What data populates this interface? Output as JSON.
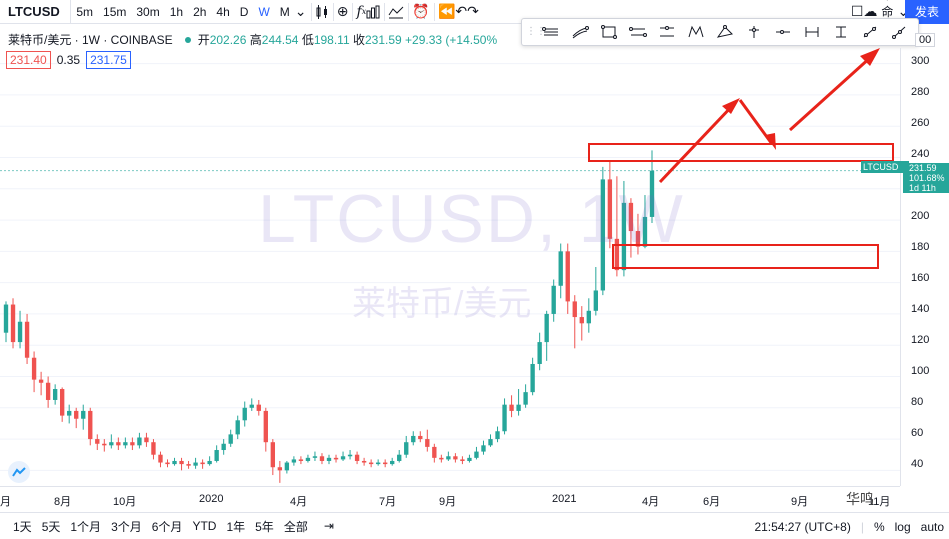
{
  "toolbar": {
    "symbol": "LTCUSD",
    "timeframes": [
      "5m",
      "15m",
      "30m",
      "1h",
      "2h",
      "4h",
      "D",
      "W",
      "M"
    ],
    "active_timeframe": "W",
    "unnamed_label": "未命名",
    "publish_label": "发表"
  },
  "legend": {
    "name": "莱特币/美元 · 1W · COINBASE",
    "open_label": "开",
    "open": "202.26",
    "high_label": "高",
    "high": "244.54",
    "low_label": "低",
    "low": "198.11",
    "close_label": "收",
    "close": "231.59",
    "change": "+29.33 (+14.50%",
    "bid": "231.40",
    "spread": "0.35",
    "ask": "231.75"
  },
  "watermark": {
    "line1": "LTCUSD, 1W",
    "line2": "莱特币/美元"
  },
  "price_axis": {
    "ticks": [
      "300",
      "280",
      "260",
      "240",
      "220",
      "200",
      "180",
      "160",
      "140",
      "120",
      "100",
      "80",
      "60",
      "40"
    ],
    "symbol_tag": "LTCUSD",
    "last_price": "231.59",
    "pct": "101.68%",
    "countdown": "1d 11h",
    "top_partial": "00"
  },
  "time_axis": {
    "ticks": [
      "月",
      "8月",
      "10月",
      "2020",
      "4月",
      "7月",
      "9月",
      "2021",
      "4月",
      "6月",
      "9月",
      "11月"
    ]
  },
  "bottom": {
    "ranges": [
      "1天",
      "5天",
      "1个月",
      "3个月",
      "6个月",
      "YTD",
      "1年",
      "5年",
      "全部"
    ],
    "time": "21:54:27 (UTC+8)",
    "percent": "%",
    "log": "log",
    "auto": "auto"
  },
  "brand_watermark": "华鸣",
  "colors": {
    "up": "#26a69a",
    "down": "#ef5350",
    "accent": "#2962ff",
    "annotation": "#e8231a"
  },
  "chart_data": {
    "type": "candlestick",
    "title": "LTCUSD",
    "ylim": [
      30,
      310
    ],
    "last_price": 231.59,
    "candles": [
      {
        "o": 128,
        "c": 146,
        "h": 148,
        "l": 122
      },
      {
        "o": 146,
        "c": 122,
        "h": 150,
        "l": 118
      },
      {
        "o": 122,
        "c": 135,
        "h": 142,
        "l": 118
      },
      {
        "o": 135,
        "c": 112,
        "h": 140,
        "l": 108
      },
      {
        "o": 112,
        "c": 98,
        "h": 116,
        "l": 90
      },
      {
        "o": 98,
        "c": 96,
        "h": 103,
        "l": 88
      },
      {
        "o": 96,
        "c": 85,
        "h": 100,
        "l": 80
      },
      {
        "o": 85,
        "c": 92,
        "h": 95,
        "l": 82
      },
      {
        "o": 92,
        "c": 75,
        "h": 93,
        "l": 71
      },
      {
        "o": 75,
        "c": 78,
        "h": 82,
        "l": 70
      },
      {
        "o": 78,
        "c": 73,
        "h": 80,
        "l": 67
      },
      {
        "o": 73,
        "c": 78,
        "h": 82,
        "l": 66
      },
      {
        "o": 78,
        "c": 60,
        "h": 80,
        "l": 56
      },
      {
        "o": 60,
        "c": 57,
        "h": 63,
        "l": 53
      },
      {
        "o": 57,
        "c": 56,
        "h": 60,
        "l": 52
      },
      {
        "o": 56,
        "c": 58,
        "h": 63,
        "l": 54
      },
      {
        "o": 58,
        "c": 56,
        "h": 61,
        "l": 53
      },
      {
        "o": 56,
        "c": 58,
        "h": 61,
        "l": 54
      },
      {
        "o": 58,
        "c": 56,
        "h": 61,
        "l": 53
      },
      {
        "o": 56,
        "c": 61,
        "h": 64,
        "l": 54
      },
      {
        "o": 61,
        "c": 58,
        "h": 64,
        "l": 55
      },
      {
        "o": 58,
        "c": 50,
        "h": 60,
        "l": 47
      },
      {
        "o": 50,
        "c": 45,
        "h": 52,
        "l": 42
      },
      {
        "o": 45,
        "c": 44,
        "h": 47,
        "l": 42
      },
      {
        "o": 44,
        "c": 46,
        "h": 48,
        "l": 43
      },
      {
        "o": 46,
        "c": 44,
        "h": 48,
        "l": 40
      },
      {
        "o": 44,
        "c": 43,
        "h": 46,
        "l": 41
      },
      {
        "o": 43,
        "c": 45,
        "h": 48,
        "l": 41
      },
      {
        "o": 45,
        "c": 44,
        "h": 47,
        "l": 41
      },
      {
        "o": 44,
        "c": 46,
        "h": 49,
        "l": 43
      },
      {
        "o": 46,
        "c": 53,
        "h": 56,
        "l": 45
      },
      {
        "o": 53,
        "c": 57,
        "h": 60,
        "l": 50
      },
      {
        "o": 57,
        "c": 63,
        "h": 66,
        "l": 55
      },
      {
        "o": 63,
        "c": 72,
        "h": 75,
        "l": 60
      },
      {
        "o": 72,
        "c": 80,
        "h": 84,
        "l": 68
      },
      {
        "o": 80,
        "c": 82,
        "h": 86,
        "l": 78
      },
      {
        "o": 82,
        "c": 78,
        "h": 85,
        "l": 75
      },
      {
        "o": 78,
        "c": 58,
        "h": 80,
        "l": 52
      },
      {
        "o": 58,
        "c": 42,
        "h": 60,
        "l": 37
      },
      {
        "o": 42,
        "c": 40,
        "h": 46,
        "l": 32
      },
      {
        "o": 40,
        "c": 45,
        "h": 46,
        "l": 38
      },
      {
        "o": 45,
        "c": 47,
        "h": 49,
        "l": 43
      },
      {
        "o": 47,
        "c": 46,
        "h": 49,
        "l": 44
      },
      {
        "o": 46,
        "c": 48,
        "h": 50,
        "l": 45
      },
      {
        "o": 48,
        "c": 49,
        "h": 52,
        "l": 46
      },
      {
        "o": 49,
        "c": 46,
        "h": 51,
        "l": 44
      },
      {
        "o": 46,
        "c": 48,
        "h": 50,
        "l": 44
      },
      {
        "o": 48,
        "c": 47,
        "h": 50,
        "l": 45
      },
      {
        "o": 47,
        "c": 49,
        "h": 52,
        "l": 46
      },
      {
        "o": 49,
        "c": 50,
        "h": 53,
        "l": 47
      },
      {
        "o": 50,
        "c": 46,
        "h": 52,
        "l": 44
      },
      {
        "o": 46,
        "c": 45,
        "h": 48,
        "l": 43
      },
      {
        "o": 45,
        "c": 44,
        "h": 47,
        "l": 42
      },
      {
        "o": 44,
        "c": 45,
        "h": 47,
        "l": 43
      },
      {
        "o": 45,
        "c": 44,
        "h": 47,
        "l": 42
      },
      {
        "o": 44,
        "c": 46,
        "h": 48,
        "l": 43
      },
      {
        "o": 46,
        "c": 50,
        "h": 53,
        "l": 45
      },
      {
        "o": 50,
        "c": 58,
        "h": 62,
        "l": 48
      },
      {
        "o": 58,
        "c": 62,
        "h": 65,
        "l": 56
      },
      {
        "o": 62,
        "c": 60,
        "h": 65,
        "l": 58
      },
      {
        "o": 60,
        "c": 55,
        "h": 66,
        "l": 52
      },
      {
        "o": 55,
        "c": 48,
        "h": 57,
        "l": 45
      },
      {
        "o": 48,
        "c": 47,
        "h": 50,
        "l": 45
      },
      {
        "o": 47,
        "c": 49,
        "h": 52,
        "l": 46
      },
      {
        "o": 49,
        "c": 47,
        "h": 51,
        "l": 45
      },
      {
        "o": 47,
        "c": 46,
        "h": 49,
        "l": 44
      },
      {
        "o": 46,
        "c": 48,
        "h": 50,
        "l": 45
      },
      {
        "o": 48,
        "c": 52,
        "h": 55,
        "l": 47
      },
      {
        "o": 52,
        "c": 56,
        "h": 59,
        "l": 50
      },
      {
        "o": 56,
        "c": 60,
        "h": 63,
        "l": 55
      },
      {
        "o": 60,
        "c": 65,
        "h": 68,
        "l": 58
      },
      {
        "o": 65,
        "c": 82,
        "h": 86,
        "l": 63
      },
      {
        "o": 82,
        "c": 78,
        "h": 88,
        "l": 74
      },
      {
        "o": 78,
        "c": 82,
        "h": 92,
        "l": 75
      },
      {
        "o": 82,
        "c": 90,
        "h": 95,
        "l": 80
      },
      {
        "o": 90,
        "c": 108,
        "h": 112,
        "l": 88
      },
      {
        "o": 108,
        "c": 122,
        "h": 128,
        "l": 104
      },
      {
        "o": 122,
        "c": 140,
        "h": 142,
        "l": 110
      },
      {
        "o": 140,
        "c": 158,
        "h": 162,
        "l": 135
      },
      {
        "o": 158,
        "c": 180,
        "h": 185,
        "l": 150
      },
      {
        "o": 180,
        "c": 148,
        "h": 185,
        "l": 140
      },
      {
        "o": 148,
        "c": 138,
        "h": 152,
        "l": 118
      },
      {
        "o": 138,
        "c": 134,
        "h": 145,
        "l": 123
      },
      {
        "o": 134,
        "c": 142,
        "h": 150,
        "l": 128
      },
      {
        "o": 142,
        "c": 155,
        "h": 170,
        "l": 139
      },
      {
        "o": 155,
        "c": 226,
        "h": 234,
        "l": 152
      },
      {
        "o": 226,
        "c": 188,
        "h": 238,
        "l": 182
      },
      {
        "o": 188,
        "c": 168,
        "h": 228,
        "l": 164
      },
      {
        "o": 168,
        "c": 211,
        "h": 225,
        "l": 164
      },
      {
        "o": 211,
        "c": 193,
        "h": 214,
        "l": 176
      },
      {
        "o": 193,
        "c": 183,
        "h": 204,
        "l": 178
      },
      {
        "o": 183,
        "c": 202,
        "h": 216,
        "l": 182
      },
      {
        "o": 202,
        "c": 231.59,
        "h": 244.54,
        "l": 198.11
      }
    ]
  }
}
